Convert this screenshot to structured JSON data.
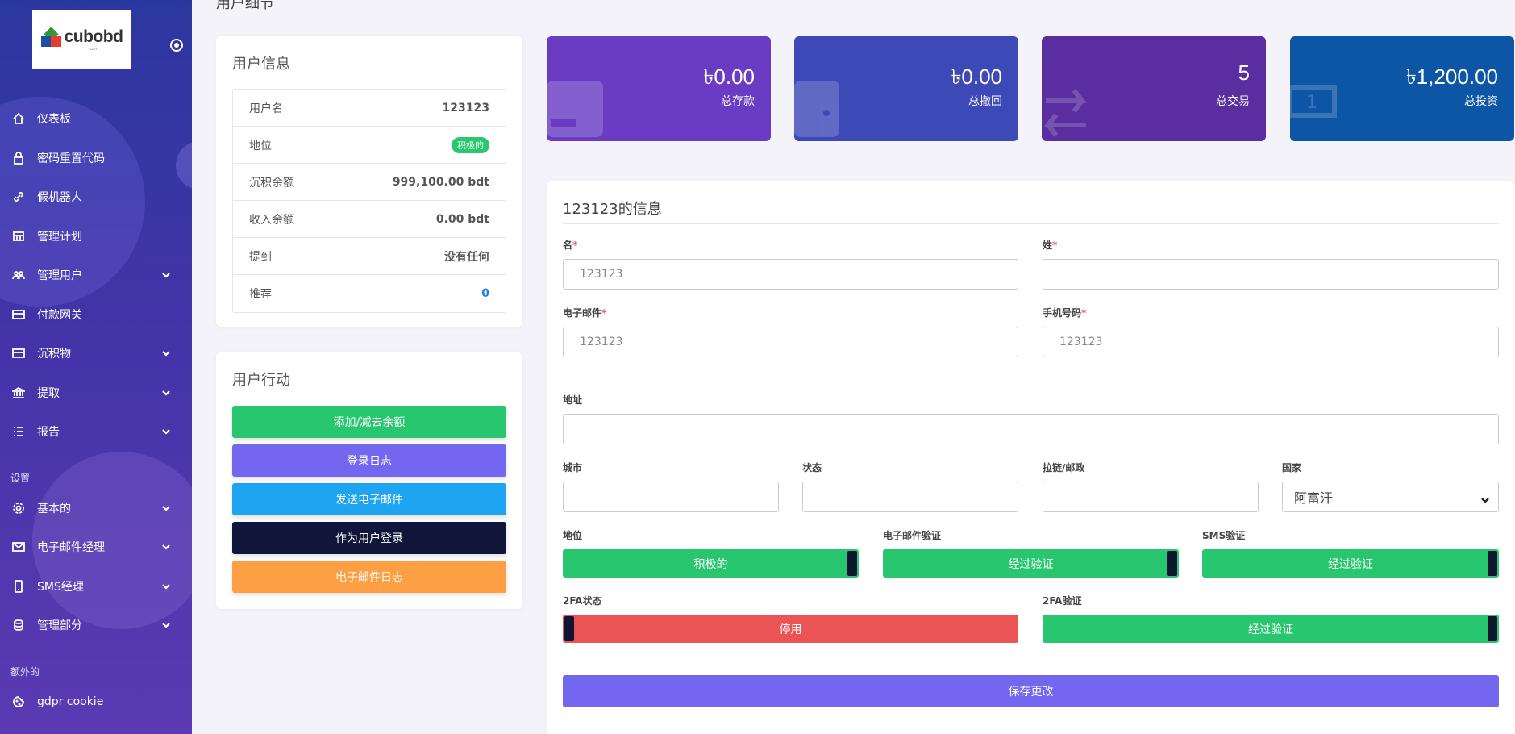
{
  "sidebar": {
    "brand": "cubobd",
    "brand_sub": ".com",
    "items": [
      {
        "label": "仪表板",
        "icon": "home-icon"
      },
      {
        "label": "密码重置代码",
        "icon": "lock-icon"
      },
      {
        "label": "假机器人",
        "icon": "link-icon"
      },
      {
        "label": "管理计划",
        "icon": "table-icon"
      },
      {
        "label": "管理用户",
        "icon": "users-icon"
      },
      {
        "label": "付款网关",
        "icon": "credit-card-icon"
      },
      {
        "label": "沉积物",
        "icon": "credit-card-icon"
      },
      {
        "label": "提取",
        "icon": "bank-icon"
      },
      {
        "label": "报告",
        "icon": "list-icon"
      }
    ],
    "section_settings": "设置",
    "settings_items": [
      {
        "label": "基本的",
        "icon": "gear-icon"
      },
      {
        "label": "电子邮件经理",
        "icon": "mail-icon"
      },
      {
        "label": "SMS经理",
        "icon": "mobile-icon"
      },
      {
        "label": "管理部分",
        "icon": "database-icon"
      }
    ],
    "section_extra": "额外的",
    "extra_items": [
      {
        "label": "gdpr cookie",
        "icon": "cookie-icon"
      }
    ]
  },
  "page_title": "用户细节",
  "user_info": {
    "title": "用户信息",
    "rows": [
      {
        "key": "用户名",
        "value": "123123"
      },
      {
        "key": "地位",
        "value": "积极的"
      },
      {
        "key": "沉积余额",
        "value": "999,100.00 bdt"
      },
      {
        "key": "收入余额",
        "value": "0.00 bdt"
      },
      {
        "key": "提到",
        "value": "没有任何"
      },
      {
        "key": "推荐",
        "value": "0"
      }
    ]
  },
  "user_actions": {
    "title": "用户行动",
    "buttons": [
      {
        "label": "添加/减去余额",
        "color": "#28c76f"
      },
      {
        "label": "登录日志",
        "color": "#7367f0"
      },
      {
        "label": "发送电子邮件",
        "color": "#1ea4f0"
      },
      {
        "label": "作为用户登录",
        "color": "#10163a"
      },
      {
        "label": "电子邮件日志",
        "color": "#ff9f43"
      }
    ]
  },
  "stats": [
    {
      "amount": "৳0.00",
      "label": "总存款",
      "color": "#6a3cc4",
      "icon": "card-icon"
    },
    {
      "amount": "৳0.00",
      "label": "总撤回",
      "color": "#3e49b8",
      "icon": "wallet-icon"
    },
    {
      "amount": "5",
      "label": "总交易",
      "color": "#5a2ea0",
      "icon": "exchange-icon"
    },
    {
      "amount": "৳1,200.00",
      "label": "总投资",
      "color": "#0d56a6",
      "icon": "money-icon"
    }
  ],
  "form": {
    "title": "123123的信息",
    "first_name": {
      "label": "名",
      "value": "123123"
    },
    "last_name": {
      "label": "姓",
      "value": ""
    },
    "email": {
      "label": "电子邮件",
      "value": "123123"
    },
    "mobile": {
      "label": "手机号码",
      "value": "123123"
    },
    "address": {
      "label": "地址",
      "value": ""
    },
    "city": {
      "label": "城市",
      "value": ""
    },
    "state": {
      "label": "状态",
      "value": ""
    },
    "zip": {
      "label": "拉链/邮政",
      "value": ""
    },
    "country": {
      "label": "国家",
      "value": "阿富汗"
    },
    "status": {
      "label": "地位",
      "value": "积极的"
    },
    "email_verify": {
      "label": "电子邮件验证",
      "value": "经过验证"
    },
    "sms_verify": {
      "label": "SMS验证",
      "value": "经过验证"
    },
    "twofa_status": {
      "label": "2FA状态",
      "value": "停用"
    },
    "twofa_verify": {
      "label": "2FA验证",
      "value": "经过验证"
    },
    "save_label": "保存更改"
  },
  "colors": {
    "green": "#28c76f",
    "red": "#ea5455",
    "primary": "#7367f0"
  }
}
